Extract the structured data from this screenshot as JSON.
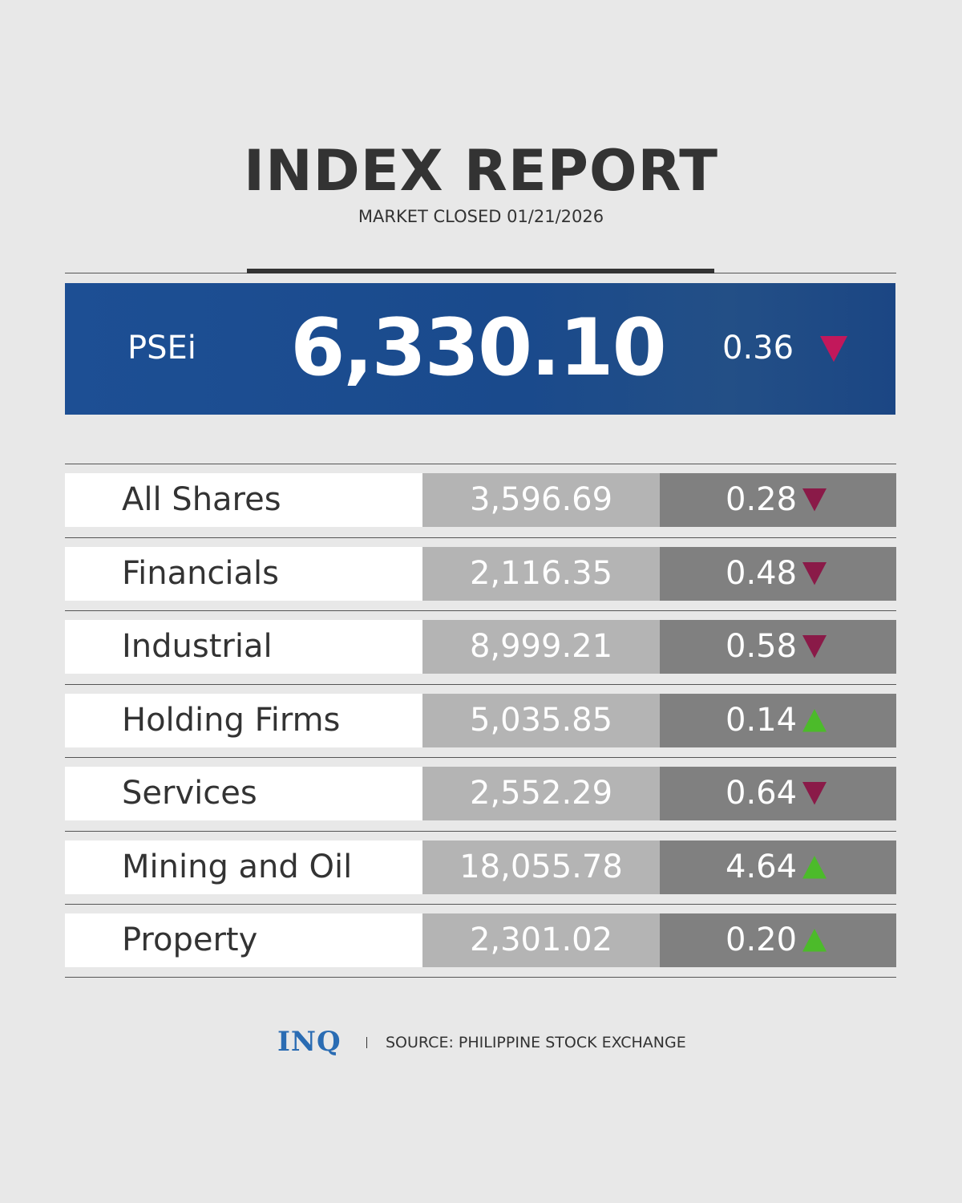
{
  "header": {
    "title": "INDEX REPORT",
    "subtitle": "MARKET CLOSED 01/21/2026"
  },
  "psei": {
    "name": "PSEi",
    "value": "6,330.10",
    "change": "0.36",
    "trend": "down"
  },
  "table": {
    "rows": [
      [
        "All Shares",
        "3,596.69",
        "0.28",
        "down"
      ],
      [
        "Financials",
        "2,116.35",
        "0.48",
        "down"
      ],
      [
        "Industrial",
        "8,999.21",
        "0.58",
        "down"
      ],
      [
        "Holding Firms",
        "5,035.85",
        "0.14",
        "up"
      ],
      [
        "Services",
        "2,552.29",
        "0.64",
        "down"
      ],
      [
        "Mining and Oil",
        "18,055.78",
        "4.64",
        "up"
      ],
      [
        "Property",
        "2,301.02",
        "0.20",
        "up"
      ]
    ]
  },
  "footer": {
    "logo": "INQ",
    "source": "SOURCE: PHILIPPINE STOCK EXCHANGE"
  }
}
